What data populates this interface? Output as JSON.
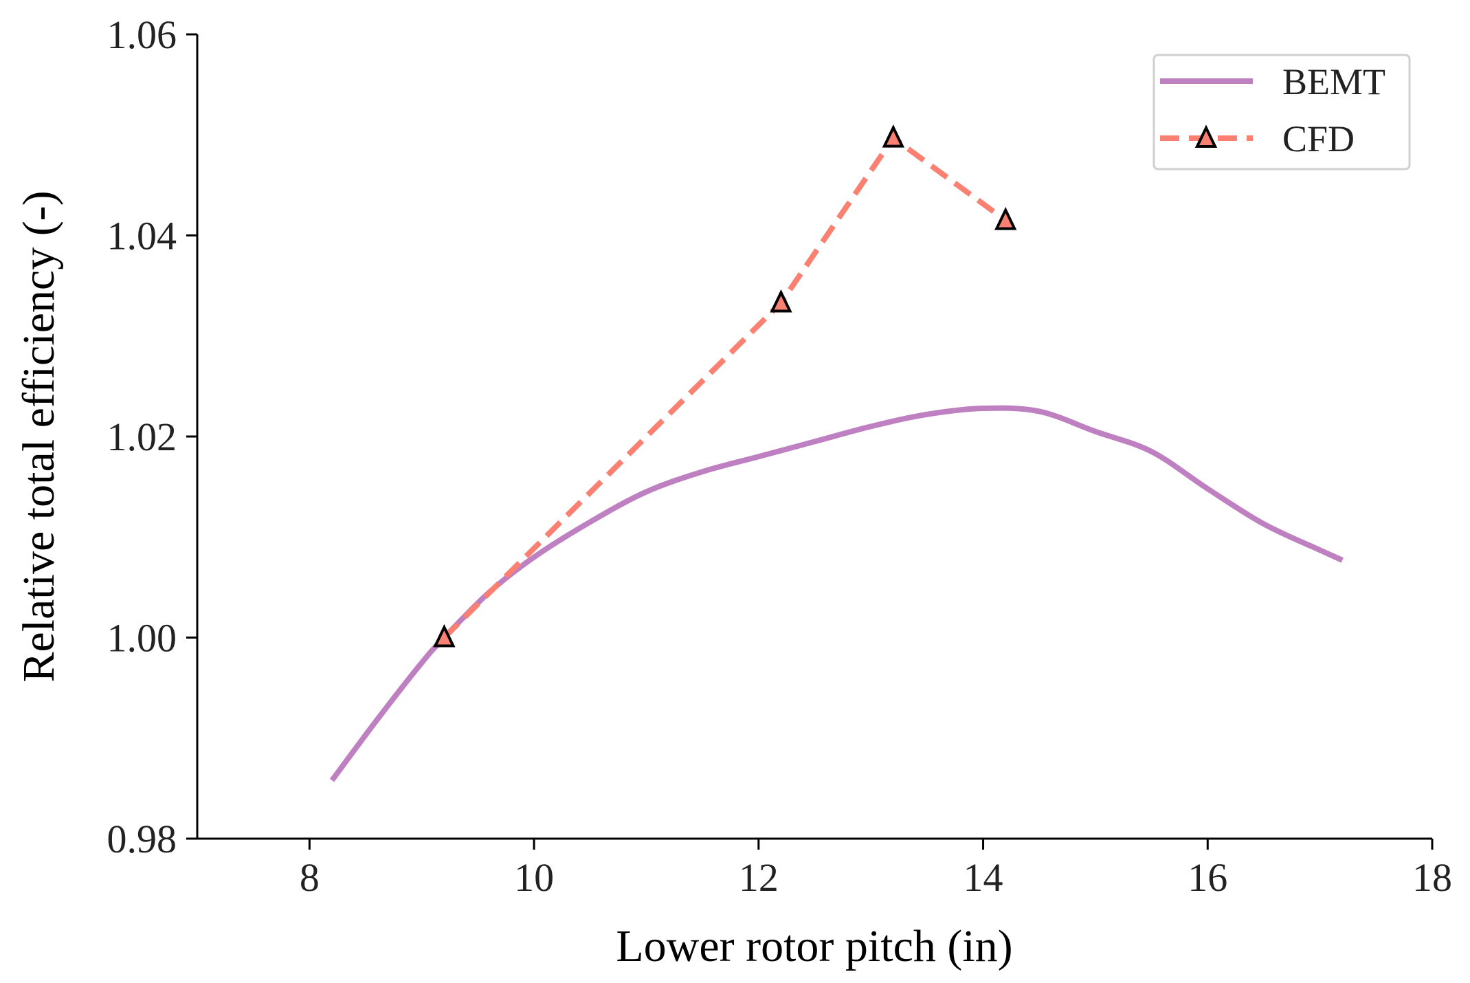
{
  "chart_data": {
    "type": "line",
    "title": "",
    "xlabel": "Lower rotor pitch (in)",
    "ylabel": "Relative total efficiency (-)",
    "xlim": [
      7,
      18
    ],
    "ylim": [
      0.98,
      1.06
    ],
    "xticks": [
      8,
      10,
      12,
      14,
      16,
      18
    ],
    "xtick_labels": [
      "8",
      "10",
      "12",
      "14",
      "16",
      "18"
    ],
    "yticks": [
      0.98,
      1.0,
      1.02,
      1.04,
      1.06
    ],
    "ytick_labels": [
      "0.98",
      "1.00",
      "1.02",
      "1.04",
      "1.06"
    ],
    "grid": false,
    "legend_position": "top-right",
    "series": [
      {
        "name": "BEMT",
        "style": "solid",
        "marker": "none",
        "color": "#bf80c1",
        "x": [
          8.2,
          8.6,
          9.0,
          9.2,
          9.6,
          10.0,
          10.5,
          11.0,
          11.5,
          12.0,
          12.5,
          13.0,
          13.5,
          14.0,
          14.5,
          15.0,
          15.5,
          16.0,
          16.5,
          17.0,
          17.2
        ],
        "y": [
          0.9858,
          0.9918,
          0.9975,
          1.0,
          1.0045,
          1.008,
          1.0115,
          1.0145,
          1.0165,
          1.018,
          1.0195,
          1.021,
          1.0222,
          1.0228,
          1.0225,
          1.0205,
          1.0185,
          1.0148,
          1.0113,
          1.0087,
          1.0077
        ]
      },
      {
        "name": "CFD",
        "style": "dashed",
        "marker": "triangle",
        "color": "#fa8072",
        "x": [
          9.2,
          12.2,
          13.2,
          14.2
        ],
        "y": [
          1.0,
          1.0333,
          1.0497,
          1.0415
        ]
      }
    ]
  },
  "colors": {
    "axis": "#000000",
    "bemt": "#bf80c1",
    "cfd": "#fa8072",
    "marker_edge": "#000000"
  }
}
